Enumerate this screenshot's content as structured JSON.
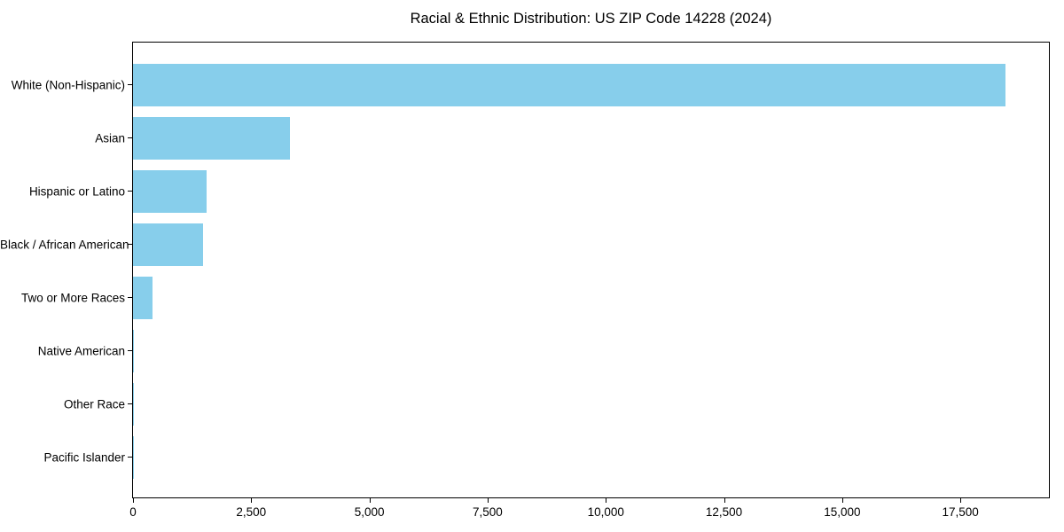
{
  "chart_data": {
    "type": "bar",
    "orientation": "horizontal",
    "title": "Racial & Ethnic Distribution: US ZIP Code 14228 (2024)",
    "xlabel": "",
    "ylabel": "",
    "categories": [
      "White (Non-Hispanic)",
      "Asian",
      "Hispanic or Latino",
      "Black / African American",
      "Two or More Races",
      "Native American",
      "Other Race",
      "Pacific Islander"
    ],
    "values": [
      18450,
      3320,
      1550,
      1480,
      415,
      25,
      10,
      4
    ],
    "xlim": [
      0,
      19372
    ],
    "xticks": [
      {
        "value": 0,
        "label": "0"
      },
      {
        "value": 2500,
        "label": "2,500"
      },
      {
        "value": 5000,
        "label": "5,000"
      },
      {
        "value": 7500,
        "label": "7,500"
      },
      {
        "value": 10000,
        "label": "10,000"
      },
      {
        "value": 12500,
        "label": "12,500"
      },
      {
        "value": 15000,
        "label": "15,000"
      },
      {
        "value": 17500,
        "label": "17,500"
      }
    ],
    "grid": false,
    "legend": null,
    "colors": {
      "bar": "#87CEEB",
      "axis": "#000000",
      "text": "#000000",
      "background": "#ffffff"
    }
  }
}
